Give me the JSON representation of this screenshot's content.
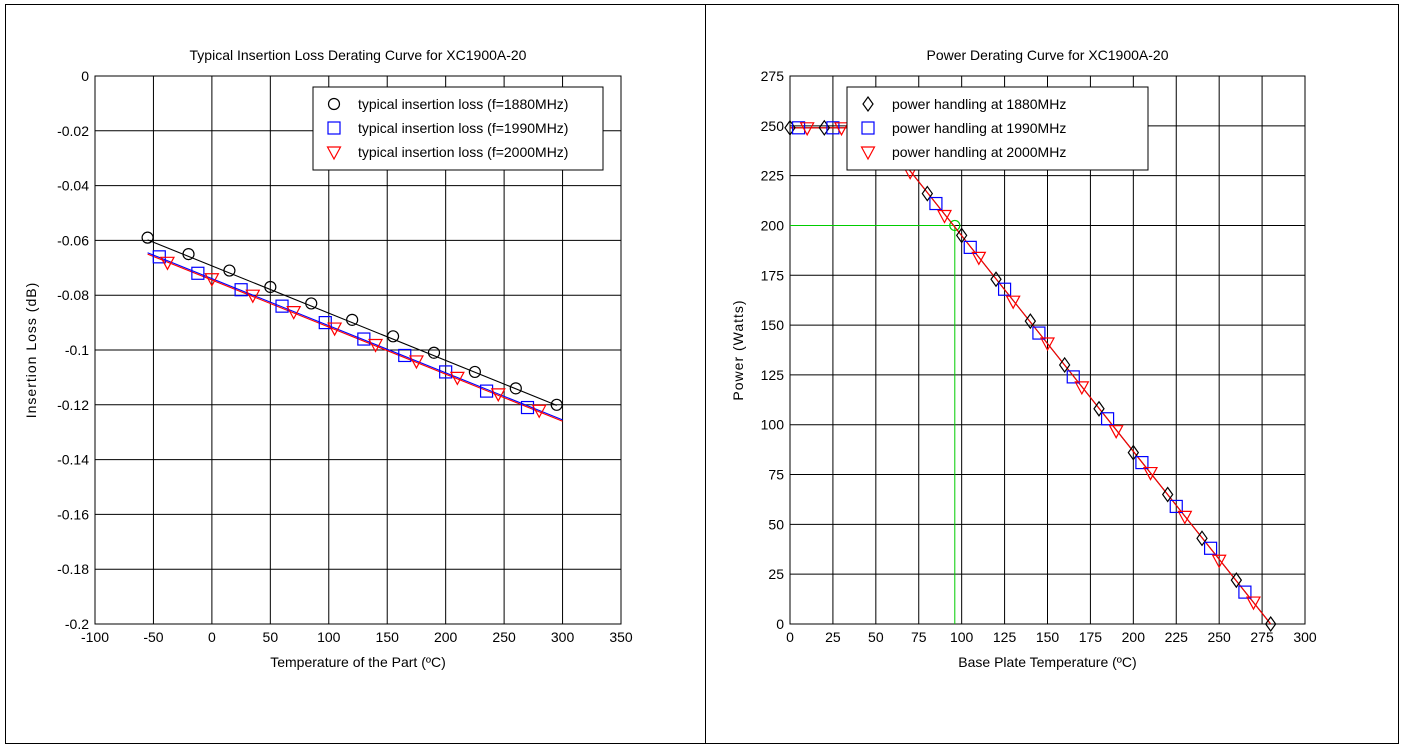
{
  "chart_data": [
    {
      "type": "scatter",
      "title": "Typical Insertion Loss Derating Curve for XC1900A-20",
      "xlabel": "Temperature of the Part (ºC)",
      "ylabel": "Insertion Loss (dB)",
      "xlim": [
        -100,
        350
      ],
      "ylim": [
        -0.2,
        0
      ],
      "xticks": [
        "-100",
        "-50",
        "0",
        "50",
        "100",
        "150",
        "200",
        "250",
        "300",
        "350"
      ],
      "yticks": [
        "0",
        "-0.02",
        "-0.04",
        "-0.06",
        "-0.08",
        "-0.1",
        "-0.12",
        "-0.14",
        "-0.16",
        "-0.18",
        "-0.2"
      ],
      "grid": true,
      "legend_position": "top-right",
      "series": [
        {
          "name": "typical insertion loss (f=1880MHz)",
          "marker": "circle",
          "color": "#000000",
          "x": [
            -55,
            -20,
            15,
            50,
            85,
            120,
            155,
            190,
            225,
            260,
            295
          ],
          "y": [
            -0.059,
            -0.065,
            -0.071,
            -0.077,
            -0.083,
            -0.089,
            -0.095,
            -0.101,
            -0.108,
            -0.114,
            -0.12
          ]
        },
        {
          "name": "typical insertion loss (f=1990MHz)",
          "marker": "square",
          "color": "#0000ff",
          "x": [
            -45,
            -12,
            25,
            60,
            97,
            130,
            165,
            200,
            235,
            270
          ],
          "y": [
            -0.066,
            -0.072,
            -0.078,
            -0.084,
            -0.09,
            -0.096,
            -0.102,
            -0.108,
            -0.115,
            -0.121
          ]
        },
        {
          "name": "typical insertion loss (f=2000MHz)",
          "marker": "triangle-down",
          "color": "#ff0000",
          "x": [
            -38,
            0,
            35,
            70,
            105,
            140,
            175,
            210,
            245,
            280
          ],
          "y": [
            -0.068,
            -0.074,
            -0.08,
            -0.086,
            -0.092,
            -0.098,
            -0.104,
            -0.11,
            -0.116,
            -0.122
          ]
        }
      ],
      "fit_lines": [
        {
          "color": "#000000",
          "x": [
            -55,
            295
          ],
          "y": [
            -0.0598,
            -0.1202
          ]
        },
        {
          "color": "#0000ff",
          "x": [
            -55,
            300
          ],
          "y": [
            -0.0645,
            -0.1255
          ]
        },
        {
          "color": "#ff0000",
          "x": [
            -55,
            300
          ],
          "y": [
            -0.065,
            -0.126
          ]
        }
      ]
    },
    {
      "type": "scatter",
      "title": "Power Derating Curve for XC1900A-20",
      "xlabel": "Base Plate Temperature (ºC)",
      "ylabel": "Power (Watts)",
      "xlim": [
        0,
        300
      ],
      "ylim": [
        0,
        275
      ],
      "xticks": [
        "0",
        "25",
        "50",
        "75",
        "100",
        "125",
        "150",
        "175",
        "200",
        "225",
        "250",
        "275",
        "300"
      ],
      "yticks": [
        "275",
        "250",
        "225",
        "200",
        "175",
        "150",
        "125",
        "100",
        "75",
        "50",
        "25",
        "0"
      ],
      "grid": true,
      "legend_position": "top-right",
      "series": [
        {
          "name": "power handling at 1880MHz",
          "marker": "diamond",
          "color": "#000000",
          "x": [
            0,
            20,
            40,
            60,
            80,
            100,
            120,
            140,
            160,
            180,
            200,
            220,
            240,
            260,
            280
          ],
          "y": [
            249,
            249,
            249,
            238,
            216,
            195,
            173,
            152,
            130,
            108,
            86,
            65,
            43,
            22,
            0
          ]
        },
        {
          "name": "power handling at 1990MHz",
          "marker": "square",
          "color": "#0000ff",
          "x": [
            5,
            25,
            45,
            65,
            85,
            105,
            125,
            145,
            165,
            185,
            205,
            225,
            245,
            265
          ],
          "y": [
            249,
            249,
            249,
            233,
            211,
            189,
            168,
            146,
            124,
            103,
            81,
            59,
            38,
            16
          ]
        },
        {
          "name": "power handling at 2000MHz",
          "marker": "triangle-down",
          "color": "#ff0000",
          "x": [
            10,
            30,
            50,
            70,
            90,
            110,
            130,
            150,
            170,
            190,
            210,
            230,
            250,
            270
          ],
          "y": [
            249,
            249,
            249,
            227,
            205,
            184,
            162,
            141,
            119,
            97,
            76,
            54,
            32,
            11
          ]
        }
      ],
      "fit_lines": [
        {
          "color": "#000000",
          "x": [
            0,
            50,
            280
          ],
          "y": [
            249,
            249,
            0
          ]
        },
        {
          "color": "#ff0000",
          "x": [
            0,
            50,
            280
          ],
          "y": [
            249,
            249,
            0
          ]
        }
      ],
      "reference": {
        "x": 96,
        "y": 200,
        "color": "#00cc00"
      }
    }
  ]
}
